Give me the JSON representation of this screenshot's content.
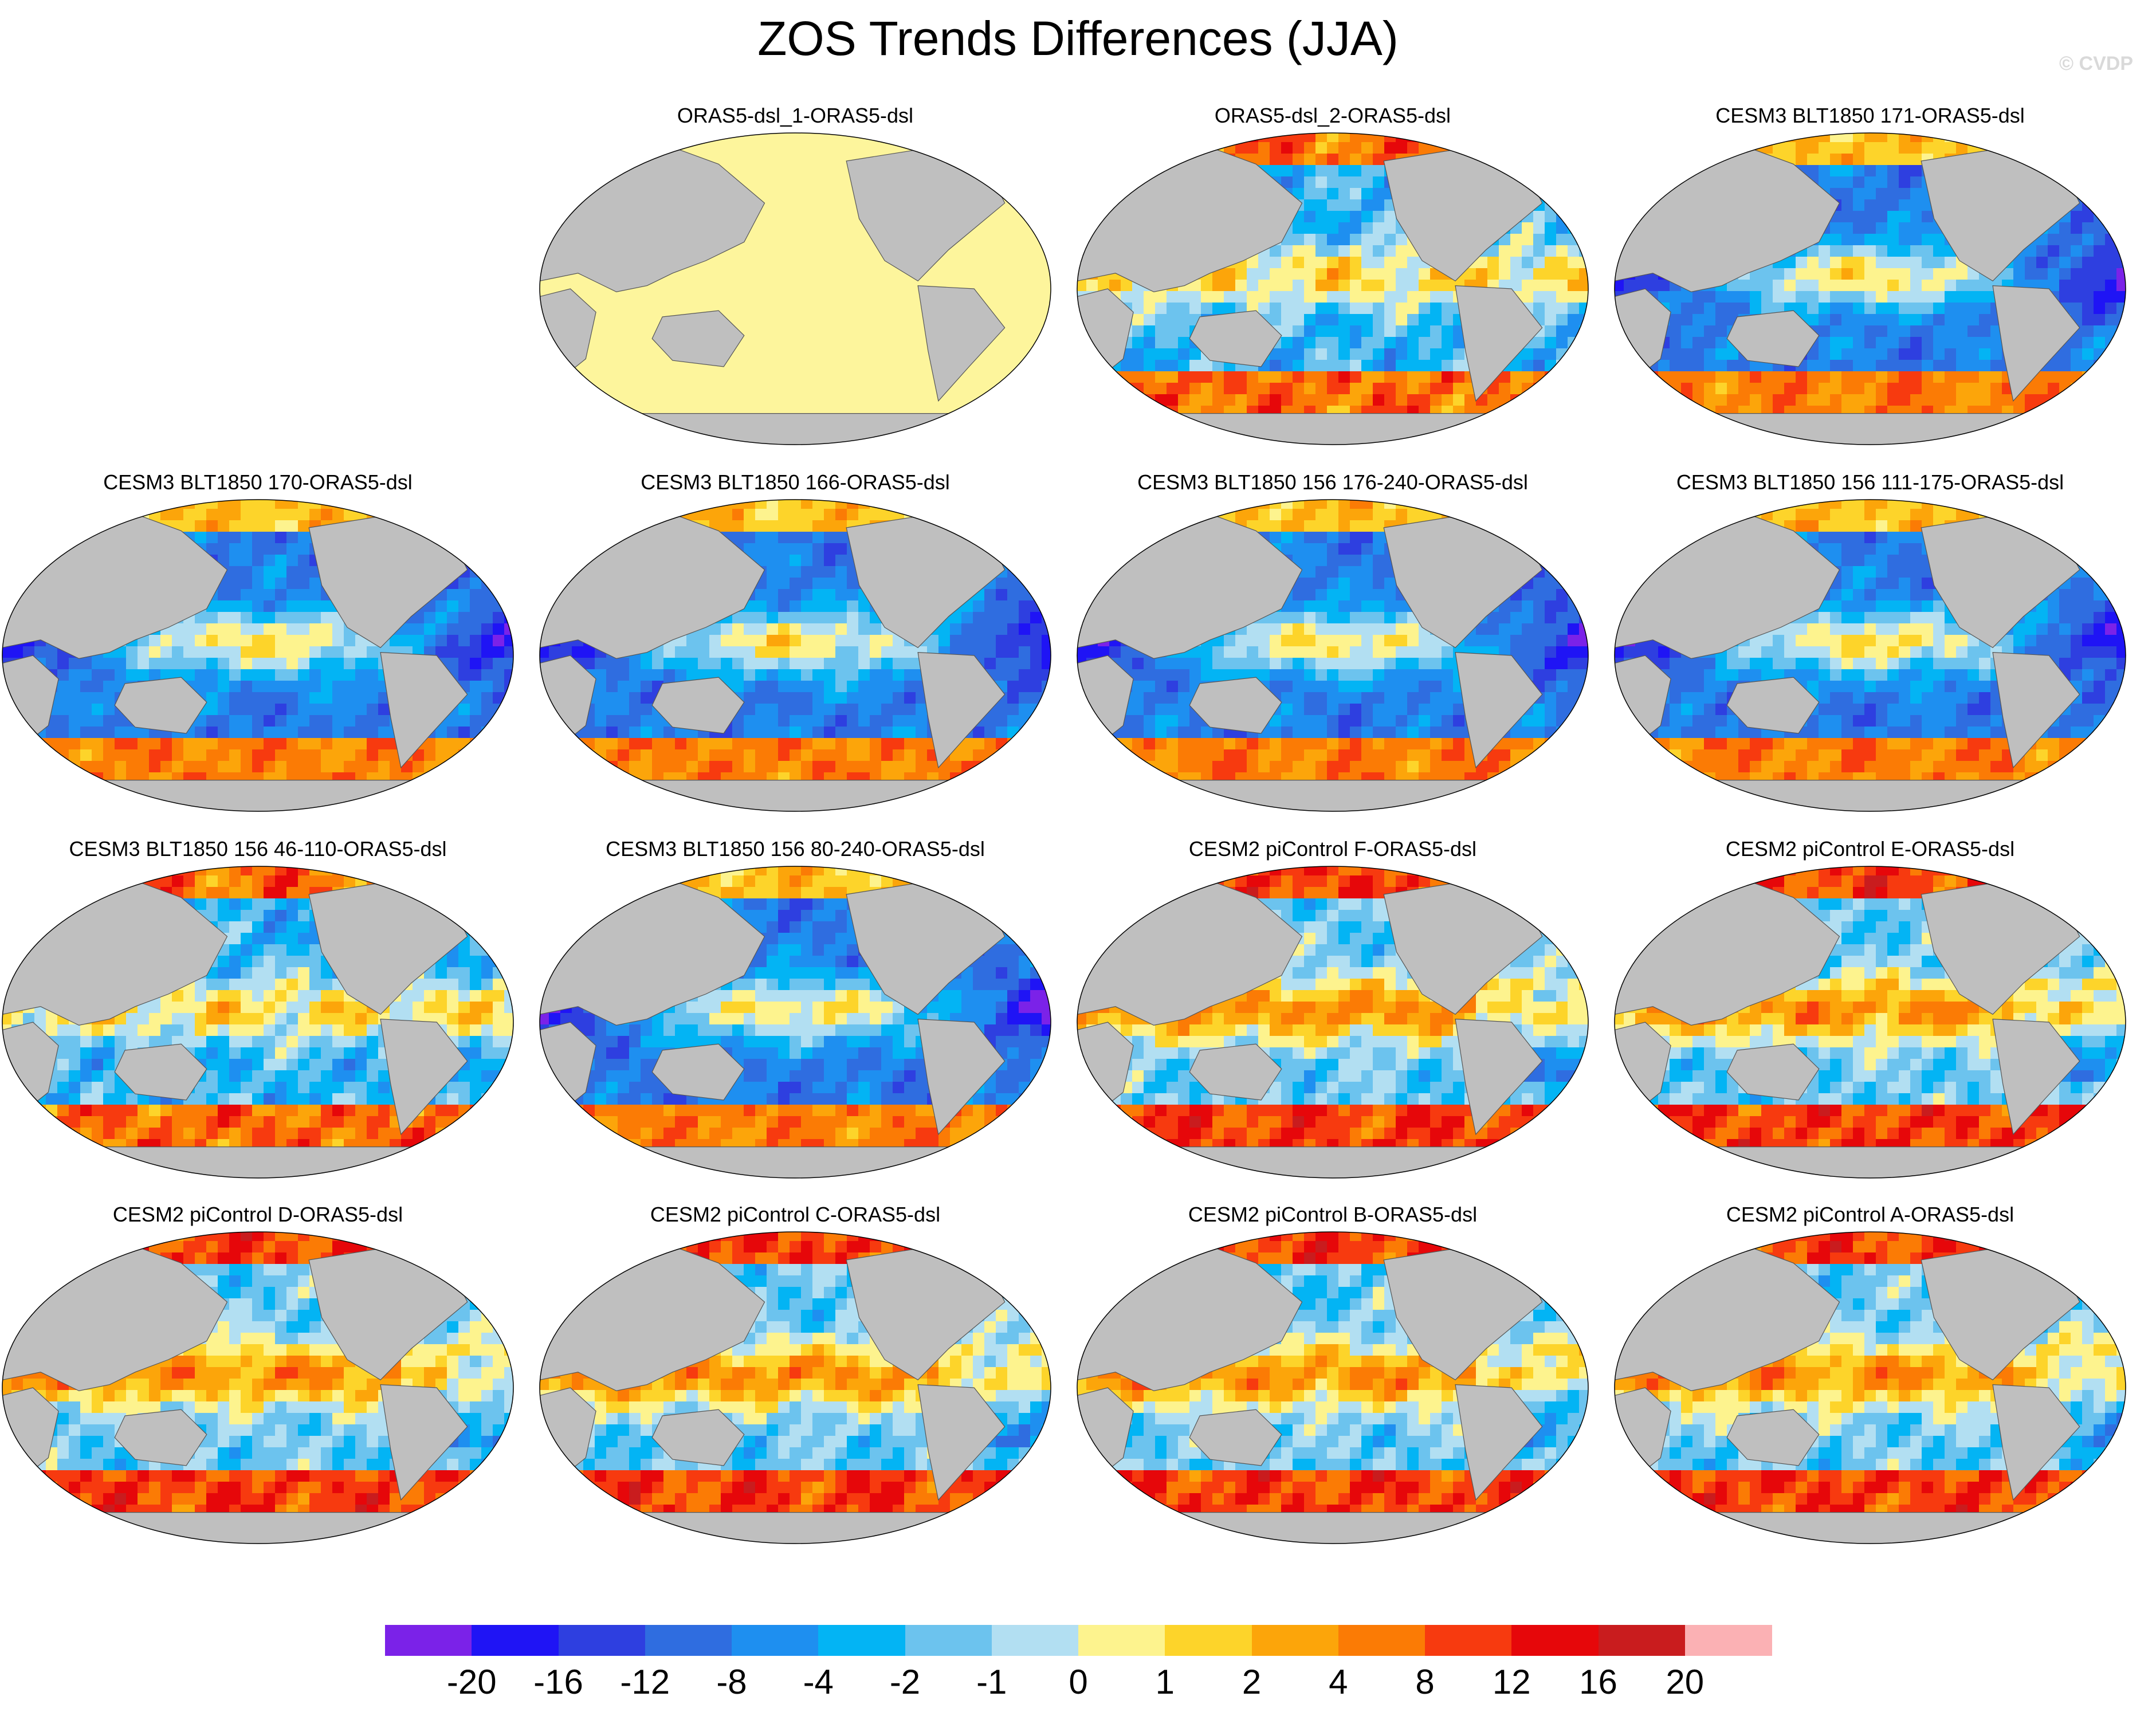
{
  "title": "ZOS Trends Differences (JJA)",
  "watermark": "© CVDP",
  "panels": [
    {
      "title": "ORAS5-dsl_1-ORAS5-dsl",
      "style": "zero"
    },
    {
      "title": "ORAS5-dsl_2-ORAS5-dsl",
      "style": "mixed"
    },
    {
      "title": "CESM3 BLT1850 171-ORAS5-dsl",
      "style": "cool"
    },
    {
      "title": "CESM3 BLT1850 170-ORAS5-dsl",
      "style": "cool"
    },
    {
      "title": "CESM3 BLT1850 166-ORAS5-dsl",
      "style": "cool"
    },
    {
      "title": "CESM3 BLT1850 156 176-240-ORAS5-dsl",
      "style": "cool"
    },
    {
      "title": "CESM3 BLT1850 156 111-175-ORAS5-dsl",
      "style": "cool"
    },
    {
      "title": "CESM3 BLT1850 156 46-110-ORAS5-dsl",
      "style": "mixed"
    },
    {
      "title": "CESM3 BLT1850 156 80-240-ORAS5-dsl",
      "style": "cool"
    },
    {
      "title": "CESM2 piControl F-ORAS5-dsl",
      "style": "warm"
    },
    {
      "title": "CESM2 piControl E-ORAS5-dsl",
      "style": "warm"
    },
    {
      "title": "CESM2 piControl D-ORAS5-dsl",
      "style": "warm"
    },
    {
      "title": "CESM2 piControl C-ORAS5-dsl",
      "style": "warm"
    },
    {
      "title": "CESM2 piControl B-ORAS5-dsl",
      "style": "warm"
    },
    {
      "title": "CESM2 piControl A-ORAS5-dsl",
      "style": "warm"
    }
  ],
  "colorbar": {
    "colors": [
      "#7b22e8",
      "#1f14f5",
      "#2e3fe0",
      "#2f6de0",
      "#1e8ff0",
      "#03b4f4",
      "#6cc3ee",
      "#b2dff2",
      "#fdf38e",
      "#fdd42a",
      "#fca50a",
      "#fb7b05",
      "#f73a0f",
      "#e6070a",
      "#c91c1e",
      "#fbb1b4"
    ],
    "labels": [
      "-20",
      "-16",
      "-12",
      "-8",
      "-4",
      "-2",
      "-1",
      "0",
      "1",
      "2",
      "4",
      "8",
      "12",
      "16",
      "20"
    ]
  },
  "land_color": "#bfbfbf",
  "zero_color": "#fdf59c"
}
